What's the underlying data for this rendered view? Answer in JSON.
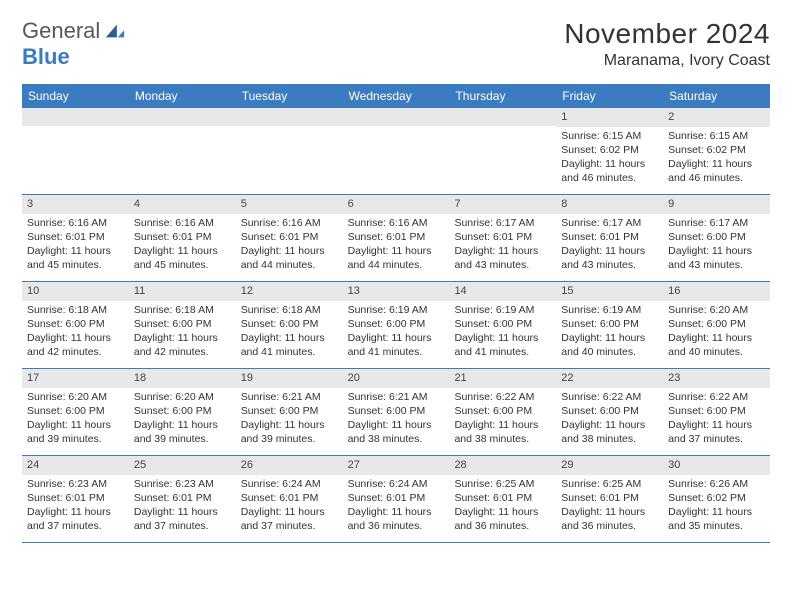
{
  "brand": {
    "word1": "General",
    "word2": "Blue"
  },
  "title": "November 2024",
  "location": "Maranama, Ivory Coast",
  "colors": {
    "header_bg": "#3b7bbf",
    "header_text": "#ffffff",
    "date_bar_bg": "#e8e8e8",
    "grid_line": "#3b7bbf",
    "body_text": "#333333",
    "page_bg": "#ffffff"
  },
  "day_names": [
    "Sunday",
    "Monday",
    "Tuesday",
    "Wednesday",
    "Thursday",
    "Friday",
    "Saturday"
  ],
  "weeks": [
    [
      {
        "date": "",
        "lines": []
      },
      {
        "date": "",
        "lines": []
      },
      {
        "date": "",
        "lines": []
      },
      {
        "date": "",
        "lines": []
      },
      {
        "date": "",
        "lines": []
      },
      {
        "date": "1",
        "lines": [
          "Sunrise: 6:15 AM",
          "Sunset: 6:02 PM",
          "Daylight: 11 hours",
          "and 46 minutes."
        ]
      },
      {
        "date": "2",
        "lines": [
          "Sunrise: 6:15 AM",
          "Sunset: 6:02 PM",
          "Daylight: 11 hours",
          "and 46 minutes."
        ]
      }
    ],
    [
      {
        "date": "3",
        "lines": [
          "Sunrise: 6:16 AM",
          "Sunset: 6:01 PM",
          "Daylight: 11 hours",
          "and 45 minutes."
        ]
      },
      {
        "date": "4",
        "lines": [
          "Sunrise: 6:16 AM",
          "Sunset: 6:01 PM",
          "Daylight: 11 hours",
          "and 45 minutes."
        ]
      },
      {
        "date": "5",
        "lines": [
          "Sunrise: 6:16 AM",
          "Sunset: 6:01 PM",
          "Daylight: 11 hours",
          "and 44 minutes."
        ]
      },
      {
        "date": "6",
        "lines": [
          "Sunrise: 6:16 AM",
          "Sunset: 6:01 PM",
          "Daylight: 11 hours",
          "and 44 minutes."
        ]
      },
      {
        "date": "7",
        "lines": [
          "Sunrise: 6:17 AM",
          "Sunset: 6:01 PM",
          "Daylight: 11 hours",
          "and 43 minutes."
        ]
      },
      {
        "date": "8",
        "lines": [
          "Sunrise: 6:17 AM",
          "Sunset: 6:01 PM",
          "Daylight: 11 hours",
          "and 43 minutes."
        ]
      },
      {
        "date": "9",
        "lines": [
          "Sunrise: 6:17 AM",
          "Sunset: 6:00 PM",
          "Daylight: 11 hours",
          "and 43 minutes."
        ]
      }
    ],
    [
      {
        "date": "10",
        "lines": [
          "Sunrise: 6:18 AM",
          "Sunset: 6:00 PM",
          "Daylight: 11 hours",
          "and 42 minutes."
        ]
      },
      {
        "date": "11",
        "lines": [
          "Sunrise: 6:18 AM",
          "Sunset: 6:00 PM",
          "Daylight: 11 hours",
          "and 42 minutes."
        ]
      },
      {
        "date": "12",
        "lines": [
          "Sunrise: 6:18 AM",
          "Sunset: 6:00 PM",
          "Daylight: 11 hours",
          "and 41 minutes."
        ]
      },
      {
        "date": "13",
        "lines": [
          "Sunrise: 6:19 AM",
          "Sunset: 6:00 PM",
          "Daylight: 11 hours",
          "and 41 minutes."
        ]
      },
      {
        "date": "14",
        "lines": [
          "Sunrise: 6:19 AM",
          "Sunset: 6:00 PM",
          "Daylight: 11 hours",
          "and 41 minutes."
        ]
      },
      {
        "date": "15",
        "lines": [
          "Sunrise: 6:19 AM",
          "Sunset: 6:00 PM",
          "Daylight: 11 hours",
          "and 40 minutes."
        ]
      },
      {
        "date": "16",
        "lines": [
          "Sunrise: 6:20 AM",
          "Sunset: 6:00 PM",
          "Daylight: 11 hours",
          "and 40 minutes."
        ]
      }
    ],
    [
      {
        "date": "17",
        "lines": [
          "Sunrise: 6:20 AM",
          "Sunset: 6:00 PM",
          "Daylight: 11 hours",
          "and 39 minutes."
        ]
      },
      {
        "date": "18",
        "lines": [
          "Sunrise: 6:20 AM",
          "Sunset: 6:00 PM",
          "Daylight: 11 hours",
          "and 39 minutes."
        ]
      },
      {
        "date": "19",
        "lines": [
          "Sunrise: 6:21 AM",
          "Sunset: 6:00 PM",
          "Daylight: 11 hours",
          "and 39 minutes."
        ]
      },
      {
        "date": "20",
        "lines": [
          "Sunrise: 6:21 AM",
          "Sunset: 6:00 PM",
          "Daylight: 11 hours",
          "and 38 minutes."
        ]
      },
      {
        "date": "21",
        "lines": [
          "Sunrise: 6:22 AM",
          "Sunset: 6:00 PM",
          "Daylight: 11 hours",
          "and 38 minutes."
        ]
      },
      {
        "date": "22",
        "lines": [
          "Sunrise: 6:22 AM",
          "Sunset: 6:00 PM",
          "Daylight: 11 hours",
          "and 38 minutes."
        ]
      },
      {
        "date": "23",
        "lines": [
          "Sunrise: 6:22 AM",
          "Sunset: 6:00 PM",
          "Daylight: 11 hours",
          "and 37 minutes."
        ]
      }
    ],
    [
      {
        "date": "24",
        "lines": [
          "Sunrise: 6:23 AM",
          "Sunset: 6:01 PM",
          "Daylight: 11 hours",
          "and 37 minutes."
        ]
      },
      {
        "date": "25",
        "lines": [
          "Sunrise: 6:23 AM",
          "Sunset: 6:01 PM",
          "Daylight: 11 hours",
          "and 37 minutes."
        ]
      },
      {
        "date": "26",
        "lines": [
          "Sunrise: 6:24 AM",
          "Sunset: 6:01 PM",
          "Daylight: 11 hours",
          "and 37 minutes."
        ]
      },
      {
        "date": "27",
        "lines": [
          "Sunrise: 6:24 AM",
          "Sunset: 6:01 PM",
          "Daylight: 11 hours",
          "and 36 minutes."
        ]
      },
      {
        "date": "28",
        "lines": [
          "Sunrise: 6:25 AM",
          "Sunset: 6:01 PM",
          "Daylight: 11 hours",
          "and 36 minutes."
        ]
      },
      {
        "date": "29",
        "lines": [
          "Sunrise: 6:25 AM",
          "Sunset: 6:01 PM",
          "Daylight: 11 hours",
          "and 36 minutes."
        ]
      },
      {
        "date": "30",
        "lines": [
          "Sunrise: 6:26 AM",
          "Sunset: 6:02 PM",
          "Daylight: 11 hours",
          "and 35 minutes."
        ]
      }
    ]
  ]
}
